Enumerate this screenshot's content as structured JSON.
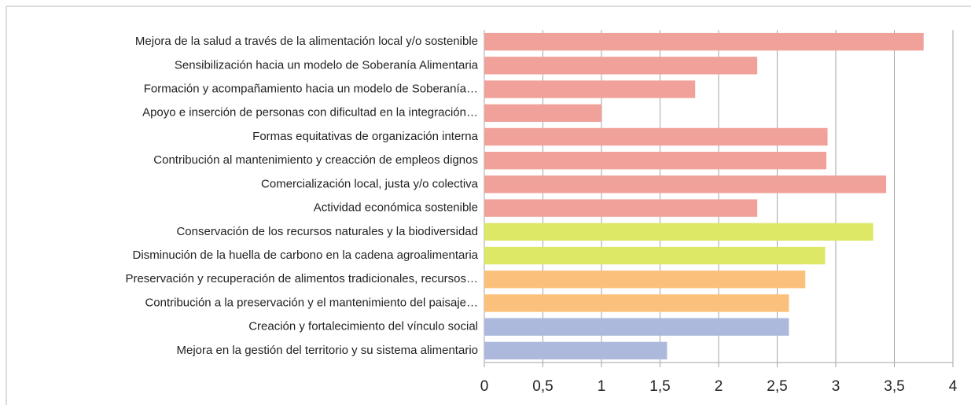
{
  "chart_data": {
    "type": "barh",
    "categories": [
      "Mejora de la salud a través de la alimentación local y/o sostenible",
      "Sensibilización hacia un modelo de Soberanía Alimentaria",
      "Formación y acompañamiento hacia un modelo de Soberanía…",
      "Apoyo e inserción de personas con dificultad en la integración…",
      "Formas equitativas de organización interna",
      "Contribución al mantenimiento y creacción de empleos dignos",
      "Comercialización local, justa y/o colectiva",
      "Actividad económica sostenible",
      "Conservación de los recursos naturales y la biodiversidad",
      "Disminución de la huella de carbono en la cadena agroalimentaria",
      "Preservación y recuperación de alimentos tradicionales, recursos…",
      "Contribución a la preservación y el mantenimiento del paisaje…",
      "Creación y fortalecimiento del vínculo social",
      "Mejora en la gestión del territorio y su sistema alimentario"
    ],
    "values": [
      3.75,
      2.33,
      1.8,
      1.0,
      2.93,
      2.92,
      3.43,
      2.33,
      3.32,
      2.91,
      2.74,
      2.6,
      2.6,
      1.56
    ],
    "colors": [
      "#f0a29a",
      "#f0a29a",
      "#f0a29a",
      "#f0a29a",
      "#f0a29a",
      "#f0a29a",
      "#f0a29a",
      "#f0a29a",
      "#dde866",
      "#dde866",
      "#fbc17c",
      "#fbc17c",
      "#adb9dc",
      "#adb9dc"
    ],
    "xlim": [
      0,
      4
    ],
    "xticks": [
      0,
      {
        "value": 0.5,
        "label": "0,5"
      },
      1,
      {
        "value": 1.5,
        "label": "1,5"
      },
      2,
      {
        "value": 2.5,
        "label": "2,5"
      },
      3,
      {
        "value": 3.5,
        "label": "3,5"
      },
      4
    ],
    "grid": true
  }
}
